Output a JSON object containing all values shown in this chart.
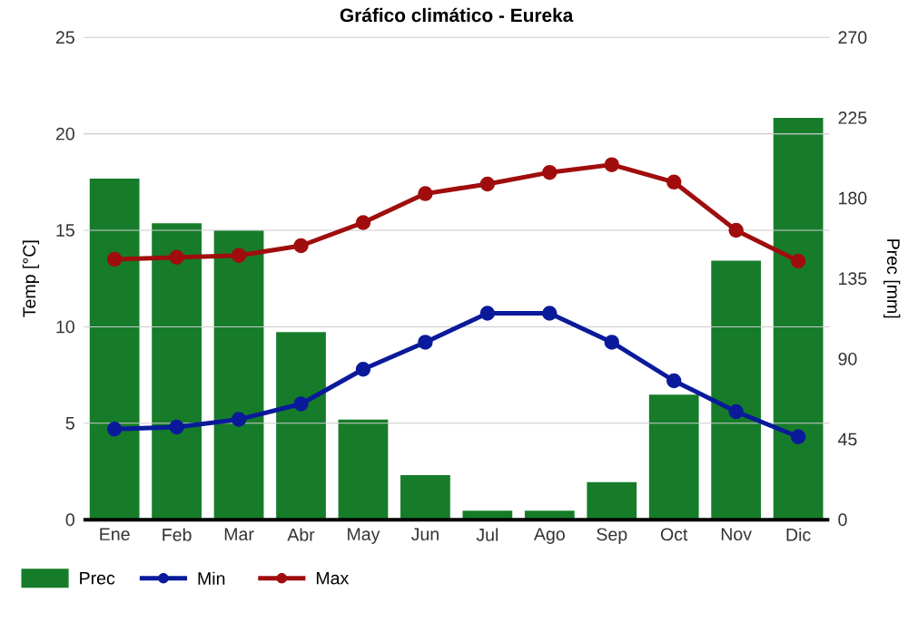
{
  "chart_data": {
    "type": "bar",
    "title": "Gráfico climático - Eureka",
    "ylabel": "Temp [°C]",
    "y2label": "Prec [mm]",
    "categories": [
      "Ene",
      "Feb",
      "Mar",
      "Abr",
      "May",
      "Jun",
      "Jul",
      "Ago",
      "Sep",
      "Oct",
      "Nov",
      "Dic"
    ],
    "series": [
      {
        "name": "Prec",
        "axis": "y2",
        "color": "#167c2a",
        "values": [
          191,
          166,
          162,
          105,
          56,
          25,
          5,
          5,
          21,
          70,
          145,
          225
        ]
      },
      {
        "name": "Min",
        "type": "line",
        "color": "#0a1a9a",
        "values": [
          4.7,
          4.8,
          5.2,
          6.0,
          7.8,
          9.2,
          10.7,
          10.7,
          9.2,
          7.2,
          5.6,
          4.3
        ]
      },
      {
        "name": "Max",
        "type": "line",
        "color": "#a00d0d",
        "values": [
          13.5,
          13.6,
          13.7,
          14.2,
          15.4,
          16.9,
          17.4,
          18.0,
          18.4,
          17.5,
          15.0,
          13.4
        ]
      }
    ],
    "ylim": [
      0,
      25
    ],
    "yticks": [
      0,
      5,
      10,
      15,
      20,
      25
    ],
    "y2lim": [
      0,
      270
    ],
    "y2ticks": [
      0,
      45,
      90,
      135,
      180,
      225,
      270
    ],
    "grid": "y",
    "legend": "bottom",
    "marker": "circle"
  }
}
